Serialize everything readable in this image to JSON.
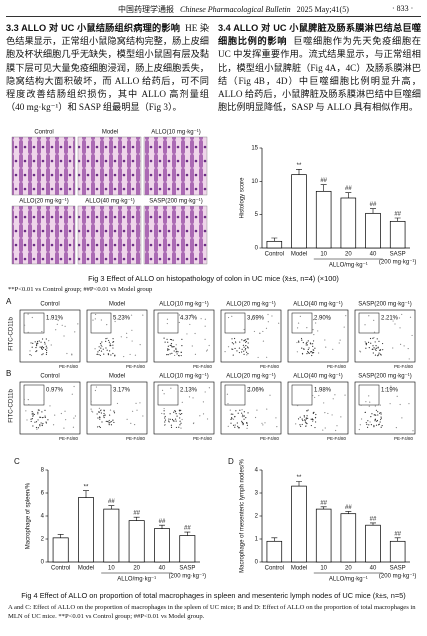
{
  "header": {
    "journal_cn": "中国药理学通报",
    "journal_en": "Chinese Pharmacological Bulletin",
    "issue": "2025 May;41(5)",
    "page": "· 833 ·"
  },
  "sections": [
    {
      "heading": "3.3  ALLO 对 UC 小鼠结肠组织病理的影响",
      "body": "HE 染色结果显示，正常组小鼠隐窝结构完整，肠上皮细胞及杯状细胞几乎无缺失，模型组小鼠固有层及黏膜下层可见大量免疫细胞浸润，肠上皮细胞丢失，隐窝结构大面积破坏，而 ALLO 给药后，可不同程度改善结肠组织损伤，其中 ALLO 高剂量组（40 mg·kg⁻¹）和 SASP 组最明显（Fig 3）。"
    },
    {
      "heading": "3.4  ALLO 对 UC 小鼠脾脏及肠系膜淋巴结总巨噬细胞比例的影响",
      "body": "巨噬细胞作为先天免疫细胞在 UC 中发挥重要作用。流式结果显示，与正常组相比，模型组小鼠脾脏（Fig 4A，4C）及肠系膜淋巴结（Fig 4B，4D）中巨噬细胞比例明显升高，ALLO 给药后，小鼠脾脏及肠系膜淋巴结中巨噬细胞比例明显降低，SASP 与 ALLO 具有相似作用。"
    }
  ],
  "figure3": {
    "panels": [
      "Control",
      "Model",
      "ALLO(10 mg·kg⁻¹)",
      "ALLO(20 mg·kg⁻¹)",
      "ALLO(40 mg·kg⁻¹)",
      "SASP(200 mg·kg⁻¹)"
    ],
    "chart": {
      "type": "bar",
      "y_label": "Histology score",
      "categories": [
        "Control",
        "Model",
        "10",
        "20",
        "40",
        "SASP"
      ],
      "group_labels": [
        "ALLO/mg·kg⁻¹",
        "(200 mg·kg⁻¹)"
      ],
      "values": [
        1,
        11,
        8.5,
        7.5,
        5.2,
        4
      ],
      "errors": [
        0.5,
        0.8,
        1,
        0.8,
        0.7,
        0.5
      ],
      "significance": [
        null,
        "**",
        "##",
        "##",
        "##",
        "##"
      ],
      "color": "#ffffff",
      "edge_color": "#000000",
      "ylim": [
        0,
        15
      ],
      "yticks": [
        0,
        5,
        10,
        15
      ]
    },
    "caption": "Fig 3   Effect of ALLO on histopathology of colon in UC mice (x̄±s, n=4) (×100)",
    "footnote": "**P<0.01 vs Control group; ##P<0.01 vs Model group"
  },
  "figure4": {
    "flow": {
      "groups": [
        "Control",
        "Model",
        "ALLO(10 mg·kg⁻¹)",
        "ALLO(20 mg·kg⁻¹)",
        "ALLO(40 mg·kg⁻¹)",
        "SASP(200 mg·kg⁻¹)"
      ],
      "x_label": "PE-F4/80",
      "y_label": "FITC-CD11b",
      "rows": [
        {
          "panel": "A",
          "percents": [
            "1.91%",
            "5.23%",
            "4.37%",
            "3.69%",
            "2.90%",
            "2.21%"
          ]
        },
        {
          "panel": "B",
          "percents": [
            "0.97%",
            "3.17%",
            "2.13%",
            "2.06%",
            "1.98%",
            "1.19%"
          ]
        }
      ]
    },
    "charts": [
      {
        "type": "bar",
        "panel": "C",
        "y_label": "Macrophage of spleen/%",
        "categories": [
          "Control",
          "Model",
          "10",
          "20",
          "40",
          "SASP"
        ],
        "group_labels": [
          "ALLO/mg·kg⁻¹",
          "(200 mg·kg⁻¹)"
        ],
        "values": [
          2.1,
          5.6,
          4.6,
          3.6,
          2.9,
          2.3
        ],
        "errors": [
          0.3,
          0.6,
          0.3,
          0.3,
          0.3,
          0.3
        ],
        "significance": [
          null,
          "**",
          "##",
          "##",
          "##",
          "##"
        ],
        "color": "#ffffff",
        "edge_color": "#000000",
        "ylim": [
          0,
          8
        ],
        "yticks": [
          0,
          2,
          4,
          6,
          8
        ]
      },
      {
        "type": "bar",
        "panel": "D",
        "y_label": "Macrophage of mesenteric lymph nodes/%",
        "categories": [
          "Control",
          "Model",
          "10",
          "20",
          "40",
          "SASP"
        ],
        "group_labels": [
          "ALLO/mg·kg⁻¹",
          "(200 mg·kg⁻¹)"
        ],
        "values": [
          0.9,
          3.3,
          2.3,
          2.1,
          1.6,
          0.9
        ],
        "errors": [
          0.15,
          0.2,
          0.1,
          0.1,
          0.1,
          0.15
        ],
        "significance": [
          null,
          "**",
          "##",
          "##",
          "##",
          "##"
        ],
        "color": "#ffffff",
        "edge_color": "#000000",
        "ylim": [
          0,
          4
        ],
        "yticks": [
          0,
          1,
          2,
          3,
          4
        ]
      }
    ],
    "caption": "Fig 4   Effect of ALLO on proportion of total macrophages in spleen and mesenteric lymph nodes of UC mice (x̄±s, n=5)",
    "footnote": "A and C: Effect of ALLO on the proportion of macrophages in the spleen of UC mice; B and D: Effect of ALLO on the proportion of total macrophages in MLN of UC mice. **P<0.01 vs Control group; ##P<0.01 vs Model group."
  }
}
